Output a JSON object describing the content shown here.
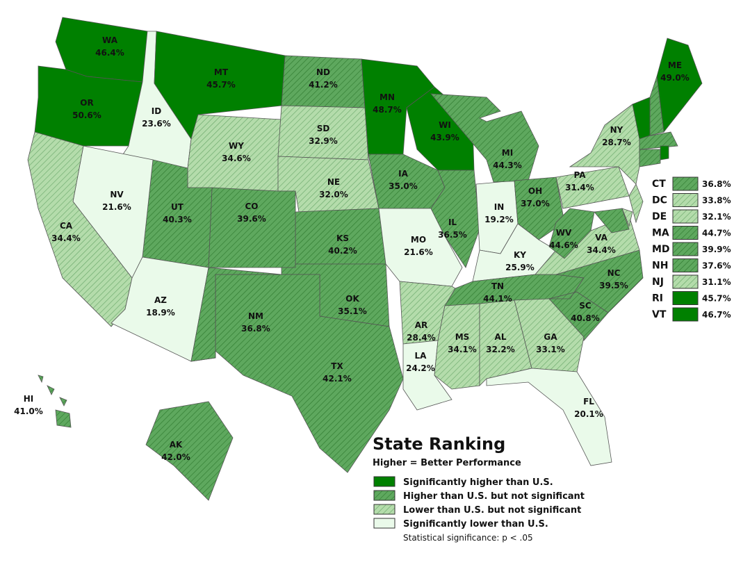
{
  "title": "State Ranking",
  "subtitle": "Higher = Better Performance",
  "note": "Statistical significance: p < .05",
  "legend": [
    {
      "label": "Significantly higher than U.S.",
      "color": "#008000",
      "hatched": false
    },
    {
      "label": "Higher than U.S. but not significant",
      "color": "#5ea85e",
      "hatched": true
    },
    {
      "label": "Lower than U.S. but not significant",
      "color": "#b4dcab",
      "hatched": true
    },
    {
      "label": "Significantly lower than U.S.",
      "color": "#eafaea",
      "hatched": false
    }
  ],
  "states": [
    {
      "abbr": "WA",
      "value": "46.4%",
      "category": 0
    },
    {
      "abbr": "OR",
      "value": "50.6%",
      "category": 0
    },
    {
      "abbr": "ID",
      "value": "23.6%",
      "category": 3
    },
    {
      "abbr": "MT",
      "value": "45.7%",
      "category": 0
    },
    {
      "abbr": "WY",
      "value": "34.6%",
      "category": 2
    },
    {
      "abbr": "ND",
      "value": "41.2%",
      "category": 1
    },
    {
      "abbr": "SD",
      "value": "32.9%",
      "category": 2
    },
    {
      "abbr": "NE",
      "value": "32.0%",
      "category": 2
    },
    {
      "abbr": "KS",
      "value": "40.2%",
      "category": 1
    },
    {
      "abbr": "OK",
      "value": "35.1%",
      "category": 1
    },
    {
      "abbr": "TX",
      "value": "42.1%",
      "category": 1
    },
    {
      "abbr": "CO",
      "value": "39.6%",
      "category": 1
    },
    {
      "abbr": "UT",
      "value": "40.3%",
      "category": 1
    },
    {
      "abbr": "NV",
      "value": "21.6%",
      "category": 3
    },
    {
      "abbr": "CA",
      "value": "34.4%",
      "category": 2
    },
    {
      "abbr": "AZ",
      "value": "18.9%",
      "category": 3
    },
    {
      "abbr": "NM",
      "value": "36.8%",
      "category": 1
    },
    {
      "abbr": "MN",
      "value": "48.7%",
      "category": 0
    },
    {
      "abbr": "WI",
      "value": "43.9%",
      "category": 0
    },
    {
      "abbr": "IA",
      "value": "35.0%",
      "category": 1
    },
    {
      "abbr": "MO",
      "value": "21.6%",
      "category": 3
    },
    {
      "abbr": "IL",
      "value": "36.5%",
      "category": 1
    },
    {
      "abbr": "IN",
      "value": "19.2%",
      "category": 3
    },
    {
      "abbr": "MI",
      "value": "44.3%",
      "category": 1
    },
    {
      "abbr": "OH",
      "value": "37.0%",
      "category": 1
    },
    {
      "abbr": "KY",
      "value": "25.9%",
      "category": 3
    },
    {
      "abbr": "TN",
      "value": "44.1%",
      "category": 1
    },
    {
      "abbr": "AR",
      "value": "28.4%",
      "category": 2
    },
    {
      "abbr": "LA",
      "value": "24.2%",
      "category": 3
    },
    {
      "abbr": "MS",
      "value": "34.1%",
      "category": 2
    },
    {
      "abbr": "AL",
      "value": "32.2%",
      "category": 2
    },
    {
      "abbr": "GA",
      "value": "33.1%",
      "category": 2
    },
    {
      "abbr": "FL",
      "value": "20.1%",
      "category": 3
    },
    {
      "abbr": "SC",
      "value": "40.8%",
      "category": 1
    },
    {
      "abbr": "NC",
      "value": "39.5%",
      "category": 1
    },
    {
      "abbr": "VA",
      "value": "34.4%",
      "category": 2
    },
    {
      "abbr": "WV",
      "value": "44.6%",
      "category": 1
    },
    {
      "abbr": "PA",
      "value": "31.4%",
      "category": 2
    },
    {
      "abbr": "NY",
      "value": "28.7%",
      "category": 2
    },
    {
      "abbr": "ME",
      "value": "49.0%",
      "category": 0
    },
    {
      "abbr": "AK",
      "value": "42.0%",
      "category": 1
    },
    {
      "abbr": "HI",
      "value": "41.0%",
      "category": 1
    }
  ],
  "small_states": [
    {
      "abbr": "CT",
      "value": "36.8%",
      "category": 1
    },
    {
      "abbr": "DC",
      "value": "33.8%",
      "category": 2
    },
    {
      "abbr": "DE",
      "value": "32.1%",
      "category": 2
    },
    {
      "abbr": "MA",
      "value": "44.7%",
      "category": 1
    },
    {
      "abbr": "MD",
      "value": "39.9%",
      "category": 1
    },
    {
      "abbr": "NH",
      "value": "37.6%",
      "category": 1
    },
    {
      "abbr": "NJ",
      "value": "31.1%",
      "category": 2
    },
    {
      "abbr": "RI",
      "value": "45.7%",
      "category": 0
    },
    {
      "abbr": "VT",
      "value": "46.7%",
      "category": 0
    }
  ]
}
